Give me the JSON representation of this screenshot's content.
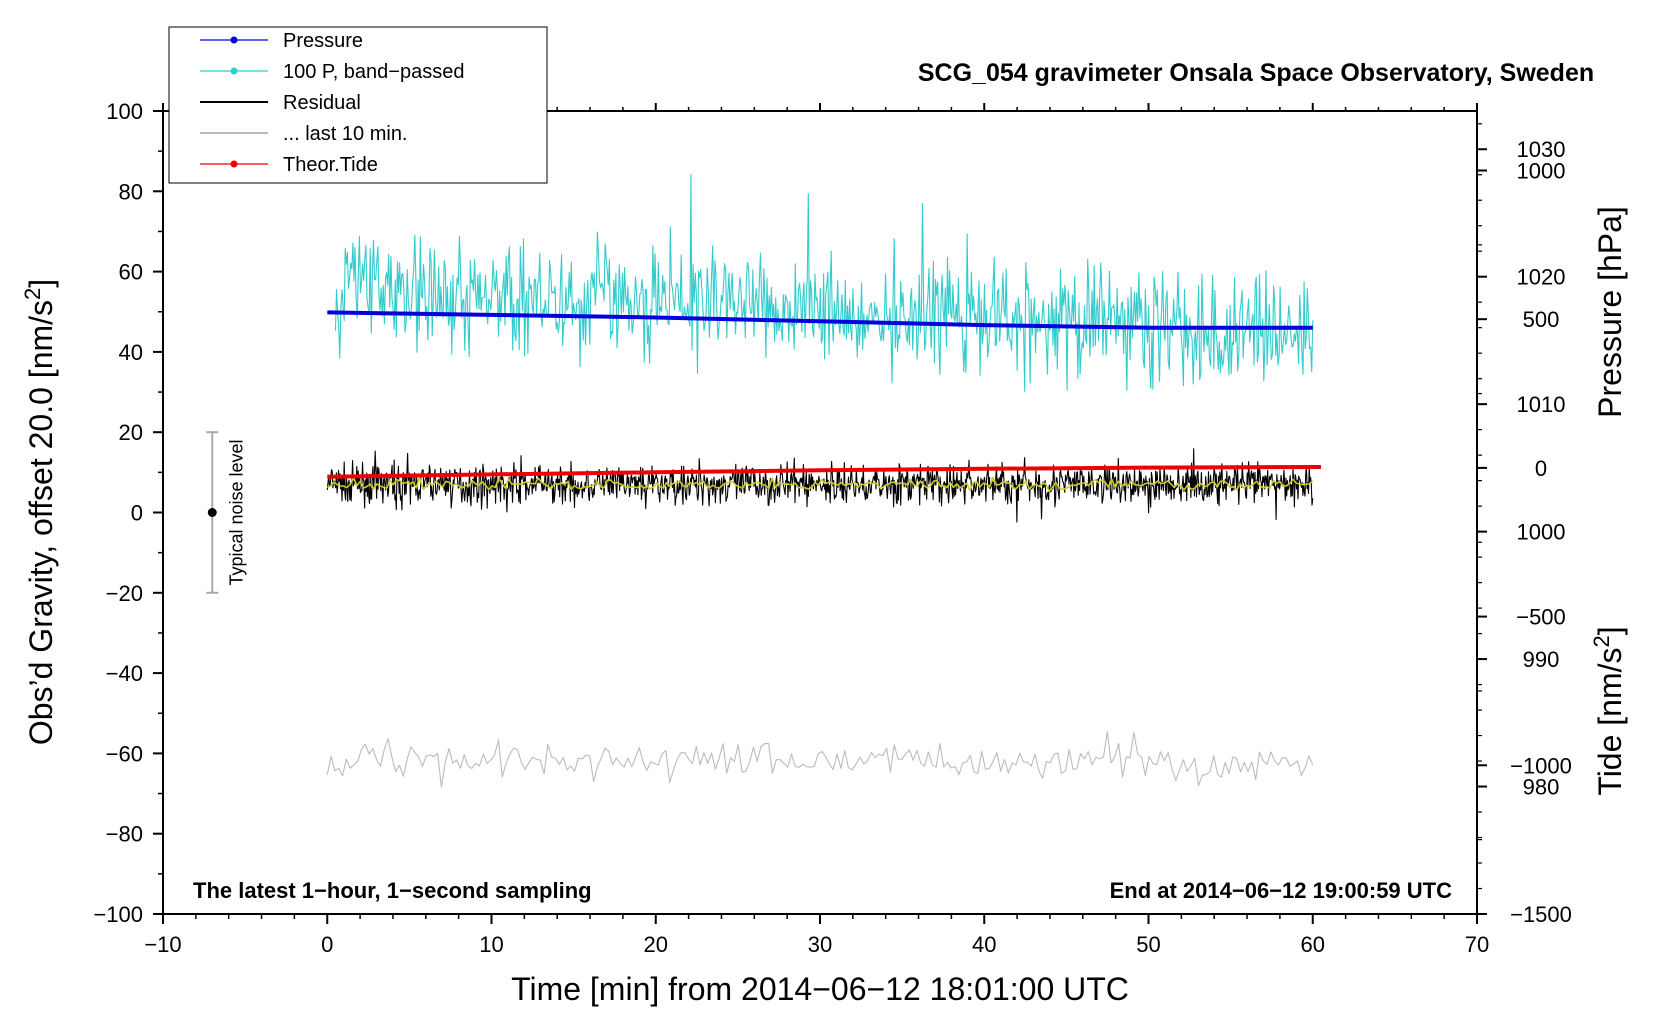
{
  "chart_data": {
    "type": "line",
    "title": "SCG_054 gravimeter Onsala Space Observatory, Sweden",
    "xlabel": "Time [min] from 2014−06−12 18:01:00 UTC",
    "ylabel_left": "Obs’d Gravity, offset 20.0 [nm/s",
    "ylabel_left_sup": "2",
    "ylabel_left_end": "]",
    "ylabel_right_pressure": "Pressure [hPa]",
    "ylabel_right_tide": "Tide [nm/s",
    "ylabel_right_tide_sup": "2",
    "ylabel_right_tide_end": "]",
    "xlim": [
      -10,
      70
    ],
    "ylim": [
      -100,
      100
    ],
    "xticks": [
      {
        "v": -10,
        "label": "−10"
      },
      {
        "v": 0,
        "label": "0"
      },
      {
        "v": 10,
        "label": "10"
      },
      {
        "v": 20,
        "label": "20"
      },
      {
        "v": 30,
        "label": "30"
      },
      {
        "v": 40,
        "label": "40"
      },
      {
        "v": 50,
        "label": "50"
      },
      {
        "v": 60,
        "label": "60"
      },
      {
        "v": 70,
        "label": "70"
      }
    ],
    "yticks_left": [
      {
        "v": 100,
        "label": "100"
      },
      {
        "v": 80,
        "label": "80"
      },
      {
        "v": 60,
        "label": "60"
      },
      {
        "v": 40,
        "label": "40"
      },
      {
        "v": 20,
        "label": "20"
      },
      {
        "v": 0,
        "label": "0"
      },
      {
        "v": -20,
        "label": "−20"
      },
      {
        "v": -40,
        "label": "−40"
      },
      {
        "v": -60,
        "label": "−60"
      },
      {
        "v": -80,
        "label": "−80"
      },
      {
        "v": -100,
        "label": "−100"
      }
    ],
    "pressure_axis": {
      "ylim": [
        970,
        1033
      ],
      "ticks": [
        {
          "v": 1030,
          "label": "1030"
        },
        {
          "v": 1020,
          "label": "1020"
        },
        {
          "v": 1010,
          "label": "1010"
        },
        {
          "v": 1000,
          "label": "1000"
        },
        {
          "v": 990,
          "label": "990"
        },
        {
          "v": 980,
          "label": "980"
        }
      ]
    },
    "tide_axis": {
      "ylim": [
        -1500,
        1200
      ],
      "ticks": [
        {
          "v": 1000,
          "label": "1000"
        },
        {
          "v": 500,
          "label": "500"
        },
        {
          "v": 0,
          "label": "0"
        },
        {
          "v": -500,
          "label": "−500"
        },
        {
          "v": -1000,
          "label": "−1000"
        },
        {
          "v": -1500,
          "label": "−1500"
        }
      ]
    },
    "series": [
      {
        "name": "Pressure",
        "color": "#0000dd",
        "kind": "pressure",
        "x": [
          0,
          10,
          20,
          30,
          40,
          50,
          60
        ],
        "values": [
          1017.2,
          1017.0,
          1016.8,
          1016.5,
          1016.2,
          1016.0,
          1016.0
        ]
      },
      {
        "name": "100 P, band−passed",
        "color": "#33cccc",
        "kind": "noisy",
        "x_start": 0.5,
        "x_end": 60,
        "n": 900,
        "mean_start": 57,
        "mean_end": 44,
        "amplitude": 7,
        "seed": 3
      },
      {
        "name": "Residual",
        "color": "#000000",
        "kind": "noisy",
        "x_start": 0,
        "x_end": 60,
        "n": 1400,
        "mean_start": 7,
        "mean_end": 7,
        "amplitude": 2.4,
        "seed": 7
      },
      {
        "name": "... last 10 min.",
        "color": "#bbbbbb",
        "kind": "noisy",
        "x_start": 0,
        "x_end": 60,
        "n": 260,
        "mean_start": -62,
        "mean_end": -62,
        "amplitude": 2.2,
        "seed": 11
      },
      {
        "name": "Theor.Tide",
        "color": "#ee0000",
        "kind": "tide",
        "x": [
          0,
          10,
          20,
          30,
          40,
          50,
          60.5
        ],
        "values": [
          -30,
          -22,
          -15,
          -8,
          -3,
          1,
          3
        ]
      },
      {
        "name": "Residual smoothed",
        "color": "#cccc22",
        "kind": "noisy",
        "x_start": 0,
        "x_end": 60,
        "n": 300,
        "mean_start": 7,
        "mean_end": 7,
        "amplitude": 0.6,
        "seed": 19
      }
    ],
    "legend": {
      "placement": "top-left",
      "entries": [
        {
          "label": "Pressure",
          "color": "#0000dd",
          "marker": true
        },
        {
          "label": "100 P, band−passed",
          "color": "#33cccc",
          "marker": true
        },
        {
          "label": "Residual",
          "color": "#000000",
          "marker": false
        },
        {
          "label": "... last 10 min.",
          "color": "#bbbbbb",
          "marker": false
        },
        {
          "label": "Theor.Tide",
          "color": "#ee0000",
          "marker": true
        }
      ]
    },
    "noise_bar": {
      "x": -7,
      "center": 0,
      "low": -20,
      "high": 20,
      "label": "Typical noise level"
    },
    "annotations": {
      "bottom_left": "The latest 1−hour, 1−second sampling",
      "bottom_right": "End at 2014−06−12 19:00:59 UTC"
    }
  }
}
